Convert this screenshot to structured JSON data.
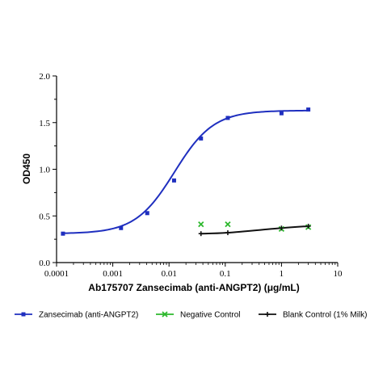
{
  "chart_data": {
    "type": "line",
    "title": "",
    "xlabel": "Ab175707 Zansecimab (anti-ANGPT2) (μg/mL)",
    "ylabel": "OD450",
    "x_scale": "log",
    "xlim": [
      0.0001,
      10
    ],
    "ylim": [
      0,
      2.0
    ],
    "x_ticks": [
      "0.0001",
      "0.001",
      "0.01",
      "0.1",
      "1",
      "10"
    ],
    "y_ticks": [
      "0.0",
      "0.5",
      "1.0",
      "1.5",
      "2.0"
    ],
    "grid": false,
    "legend_position": "bottom",
    "series": [
      {
        "name": "Zansecimab (anti-ANGPT2)",
        "color": "#1f2fbf",
        "marker": "square",
        "x": [
          0.00013,
          0.0014,
          0.0041,
          0.0123,
          0.037,
          0.111,
          1.0,
          3.0
        ],
        "y": [
          0.31,
          0.37,
          0.53,
          0.88,
          1.33,
          1.55,
          1.6,
          1.64
        ]
      },
      {
        "name": "Negative Control",
        "color": "#2db82d",
        "marker": "x",
        "x": [
          0.037,
          0.111,
          1.0,
          3.0
        ],
        "y": [
          0.41,
          0.41,
          0.36,
          0.38
        ]
      },
      {
        "name": "Blank Control (1% Milk)",
        "color": "#111111",
        "marker": "plus",
        "x": [
          0.037,
          0.111,
          1.0,
          3.0
        ],
        "y": [
          0.31,
          0.32,
          0.37,
          0.39
        ]
      }
    ]
  }
}
